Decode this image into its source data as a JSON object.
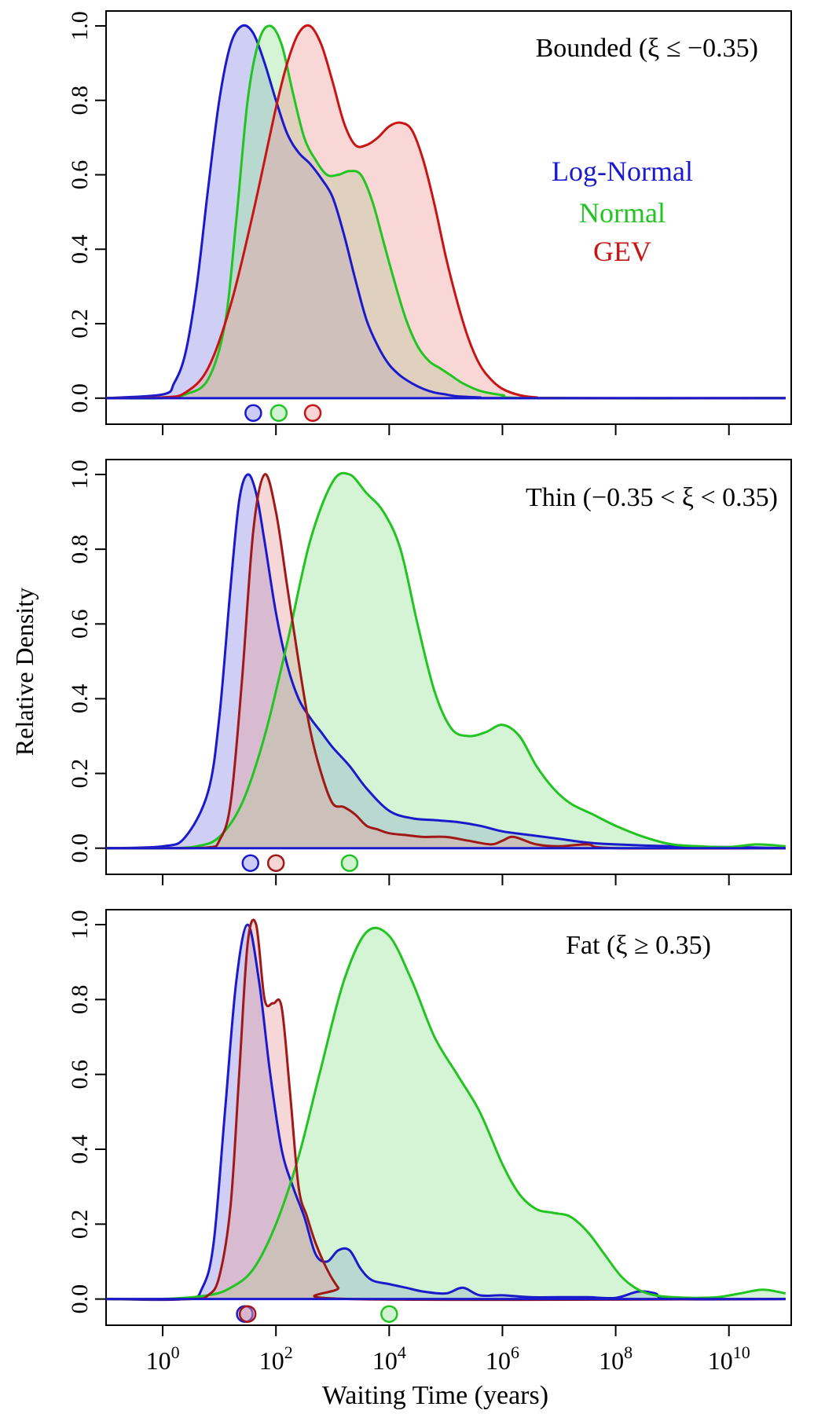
{
  "figure": {
    "ylabel": "Relative Density",
    "xlabel": "Waiting Time (years)",
    "legend": [
      {
        "label": "Log-Normal",
        "color": "#1a1acc"
      },
      {
        "label": "Normal",
        "color": "#22c422"
      },
      {
        "label": "GEV",
        "color": "#c81414"
      }
    ]
  },
  "chart_data": [
    {
      "type": "area",
      "title": "Bounded",
      "title_math": "(ξ ≤ −0.35)",
      "x_scale": "log10",
      "xlim": [
        -1,
        11.1
      ],
      "ylim": [
        -0.07,
        1.04
      ],
      "yticks": [
        "0.0",
        "0.2",
        "0.4",
        "0.6",
        "0.8",
        "1.0"
      ],
      "x_tick_labels": [],
      "legend_placement": "right",
      "series": [
        {
          "name": "Log-Normal",
          "line_color": "#1a1acc",
          "fill_color": "#8c8ce8",
          "x_log10": [
            -1,
            0,
            0.2,
            0.4,
            0.6,
            0.8,
            1,
            1.2,
            1.4,
            1.6,
            1.8,
            2,
            2.2,
            2.4,
            2.6,
            2.8,
            3,
            3.2,
            3.4,
            3.6,
            3.8,
            4,
            4.2,
            4.4,
            4.6,
            4.8,
            5,
            5.2,
            5.6,
            6,
            11
          ],
          "y": [
            0,
            0.01,
            0.04,
            0.12,
            0.3,
            0.56,
            0.8,
            0.95,
            1.0,
            0.98,
            0.9,
            0.8,
            0.71,
            0.66,
            0.63,
            0.59,
            0.54,
            0.44,
            0.32,
            0.21,
            0.14,
            0.09,
            0.06,
            0.04,
            0.025,
            0.015,
            0.01,
            0.005,
            0.002,
            0,
            0
          ],
          "marker_log10": 1.6
        },
        {
          "name": "Normal",
          "line_color": "#22c422",
          "fill_color": "#9ae59a",
          "x_log10": [
            -1,
            0,
            0.4,
            0.8,
            1.1,
            1.3,
            1.5,
            1.7,
            1.9,
            2.1,
            2.3,
            2.5,
            2.7,
            2.9,
            3.1,
            3.3,
            3.5,
            3.7,
            3.9,
            4.1,
            4.3,
            4.5,
            4.7,
            4.9,
            5.1,
            5.3,
            5.6,
            6,
            6.5,
            11
          ],
          "y": [
            0,
            0,
            0.01,
            0.05,
            0.2,
            0.48,
            0.8,
            0.96,
            1.0,
            0.95,
            0.82,
            0.7,
            0.64,
            0.6,
            0.6,
            0.61,
            0.6,
            0.53,
            0.42,
            0.31,
            0.21,
            0.14,
            0.1,
            0.08,
            0.06,
            0.04,
            0.02,
            0.008,
            0,
            0
          ],
          "marker_log10": 2.05
        },
        {
          "name": "GEV",
          "line_color": "#c81414",
          "fill_color": "#f0a0a0",
          "x_log10": [
            -1,
            0,
            0.4,
            0.8,
            1.2,
            1.6,
            2,
            2.2,
            2.4,
            2.6,
            2.8,
            3,
            3.2,
            3.4,
            3.6,
            3.8,
            4,
            4.2,
            4.4,
            4.6,
            4.8,
            5,
            5.2,
            5.4,
            5.6,
            5.8,
            6,
            6.3,
            6.6,
            7,
            11
          ],
          "y": [
            0,
            0.002,
            0.015,
            0.08,
            0.25,
            0.5,
            0.78,
            0.9,
            0.98,
            1.0,
            0.95,
            0.85,
            0.74,
            0.68,
            0.68,
            0.7,
            0.73,
            0.74,
            0.72,
            0.64,
            0.52,
            0.38,
            0.26,
            0.16,
            0.09,
            0.05,
            0.025,
            0.008,
            0.002,
            0,
            0
          ],
          "marker_log10": 2.65
        }
      ]
    },
    {
      "type": "area",
      "title": "Thin",
      "title_math": "(−0.35 < ξ < 0.35)",
      "x_scale": "log10",
      "xlim": [
        -1,
        11.1
      ],
      "ylim": [
        -0.07,
        1.04
      ],
      "yticks": [
        "0.0",
        "0.2",
        "0.4",
        "0.6",
        "0.8",
        "1.0"
      ],
      "x_tick_labels": [],
      "series": [
        {
          "name": "Log-Normal",
          "line_color": "#1a1acc",
          "fill_color": "#8c8ce8",
          "x_log10": [
            -1,
            0,
            0.4,
            0.8,
            1,
            1.2,
            1.35,
            1.5,
            1.65,
            1.8,
            2,
            2.2,
            2.4,
            2.6,
            2.8,
            3,
            3.3,
            3.6,
            4,
            4.4,
            4.8,
            5.2,
            5.6,
            6,
            6.5,
            7,
            7.5,
            8,
            9,
            10,
            11
          ],
          "y": [
            0,
            0.005,
            0.03,
            0.15,
            0.35,
            0.7,
            0.93,
            1.0,
            0.95,
            0.82,
            0.63,
            0.49,
            0.4,
            0.35,
            0.31,
            0.27,
            0.22,
            0.16,
            0.1,
            0.08,
            0.075,
            0.07,
            0.06,
            0.045,
            0.035,
            0.025,
            0.015,
            0.01,
            0.005,
            0.003,
            0
          ],
          "marker_log10": 1.55
        },
        {
          "name": "Normal",
          "line_color": "#22c422",
          "fill_color": "#9ae59a",
          "x_log10": [
            -1,
            0,
            0.6,
            1,
            1.4,
            1.8,
            2.2,
            2.6,
            3,
            3.3,
            3.6,
            3.9,
            4.2,
            4.5,
            4.8,
            5.1,
            5.4,
            5.7,
            6,
            6.3,
            6.6,
            6.9,
            7.2,
            7.6,
            8,
            8.5,
            9,
            9.5,
            10,
            10.5,
            11
          ],
          "y": [
            0,
            0,
            0.005,
            0.03,
            0.12,
            0.3,
            0.55,
            0.82,
            0.98,
            1.0,
            0.95,
            0.9,
            0.8,
            0.6,
            0.42,
            0.32,
            0.3,
            0.31,
            0.33,
            0.3,
            0.22,
            0.16,
            0.12,
            0.09,
            0.06,
            0.03,
            0.01,
            0.005,
            0.003,
            0.01,
            0.005
          ],
          "marker_log10": 3.3
        },
        {
          "name": "GEV",
          "line_color": "#a01818",
          "fill_color": "#e8a0a0",
          "x_log10": [
            -1,
            0,
            0.8,
            1,
            1.2,
            1.4,
            1.6,
            1.8,
            2,
            2.2,
            2.4,
            2.6,
            2.8,
            3,
            3.2,
            3.4,
            3.6,
            3.8,
            4,
            4.3,
            4.6,
            5,
            5.4,
            5.8,
            6,
            6.2,
            6.6,
            7,
            7.5,
            8,
            11
          ],
          "y": [
            0,
            0,
            0.002,
            0.02,
            0.12,
            0.45,
            0.85,
            1.0,
            0.9,
            0.7,
            0.5,
            0.32,
            0.2,
            0.12,
            0.11,
            0.09,
            0.06,
            0.05,
            0.04,
            0.035,
            0.03,
            0.03,
            0.02,
            0.01,
            0.02,
            0.03,
            0.01,
            0.005,
            0.01,
            0,
            0
          ],
          "marker_log10": 2.0
        }
      ]
    },
    {
      "type": "area",
      "title": "Fat",
      "title_math": "(ξ ≥ 0.35)",
      "x_scale": "log10",
      "xlim": [
        -1,
        11.1
      ],
      "ylim": [
        -0.07,
        1.04
      ],
      "yticks": [
        "0.0",
        "0.2",
        "0.4",
        "0.6",
        "0.8",
        "1.0"
      ],
      "x_tick_labels": [
        {
          "base": "10",
          "exp": "0",
          "log10": 0
        },
        {
          "base": "10",
          "exp": "2",
          "log10": 2
        },
        {
          "base": "10",
          "exp": "4",
          "log10": 4
        },
        {
          "base": "10",
          "exp": "6",
          "log10": 6
        },
        {
          "base": "10",
          "exp": "8",
          "log10": 8
        },
        {
          "base": "10",
          "exp": "10",
          "log10": 10
        }
      ],
      "series": [
        {
          "name": "Log-Normal",
          "line_color": "#1a1acc",
          "fill_color": "#8c8ce8",
          "x_log10": [
            -1,
            0.4,
            0.7,
            0.9,
            1.1,
            1.3,
            1.5,
            1.7,
            1.9,
            2.1,
            2.3,
            2.5,
            2.7,
            2.9,
            3.1,
            3.3,
            3.5,
            3.7,
            4,
            4.3,
            4.6,
            5,
            5.3,
            5.6,
            6,
            6.5,
            7,
            7.5,
            8,
            8.4,
            8.7,
            9,
            11
          ],
          "y": [
            0,
            0,
            0.03,
            0.15,
            0.5,
            0.85,
            1.0,
            0.85,
            0.6,
            0.4,
            0.3,
            0.22,
            0.12,
            0.1,
            0.13,
            0.13,
            0.08,
            0.05,
            0.04,
            0.03,
            0.02,
            0.015,
            0.03,
            0.01,
            0.01,
            0.005,
            0.005,
            0.005,
            0.003,
            0.02,
            0.015,
            0,
            0
          ],
          "marker_log10": 1.45
        },
        {
          "name": "Normal",
          "line_color": "#22c422",
          "fill_color": "#9ae59a",
          "x_log10": [
            -1,
            0,
            0.8,
            1.2,
            1.6,
            2,
            2.4,
            2.8,
            3.2,
            3.6,
            4,
            4.4,
            4.8,
            5.2,
            5.6,
            6,
            6.3,
            6.6,
            6.9,
            7.2,
            7.5,
            7.8,
            8.1,
            8.4,
            8.7,
            9,
            9.4,
            9.8,
            10.2,
            10.6,
            11
          ],
          "y": [
            0,
            0,
            0.01,
            0.03,
            0.08,
            0.2,
            0.38,
            0.62,
            0.85,
            0.98,
            0.97,
            0.85,
            0.7,
            0.6,
            0.5,
            0.36,
            0.28,
            0.24,
            0.23,
            0.22,
            0.18,
            0.12,
            0.06,
            0.025,
            0.01,
            0.005,
            0.003,
            0.005,
            0.015,
            0.025,
            0.015
          ],
          "marker_log10": 4.0
        },
        {
          "name": "GEV",
          "line_color": "#a01818",
          "fill_color": "#e8a0a0",
          "x_log10": [
            -1,
            0.5,
            0.8,
            1,
            1.2,
            1.35,
            1.5,
            1.65,
            1.8,
            1.95,
            2.1,
            2.25,
            2.4,
            2.55,
            2.7,
            2.9,
            3.1,
            3.3,
            11
          ],
          "y": [
            0,
            0,
            0.01,
            0.06,
            0.25,
            0.6,
            0.95,
            1.0,
            0.8,
            0.79,
            0.78,
            0.55,
            0.3,
            0.22,
            0.15,
            0.08,
            0.03,
            0,
            0
          ],
          "marker_log10": 1.5
        }
      ]
    }
  ]
}
